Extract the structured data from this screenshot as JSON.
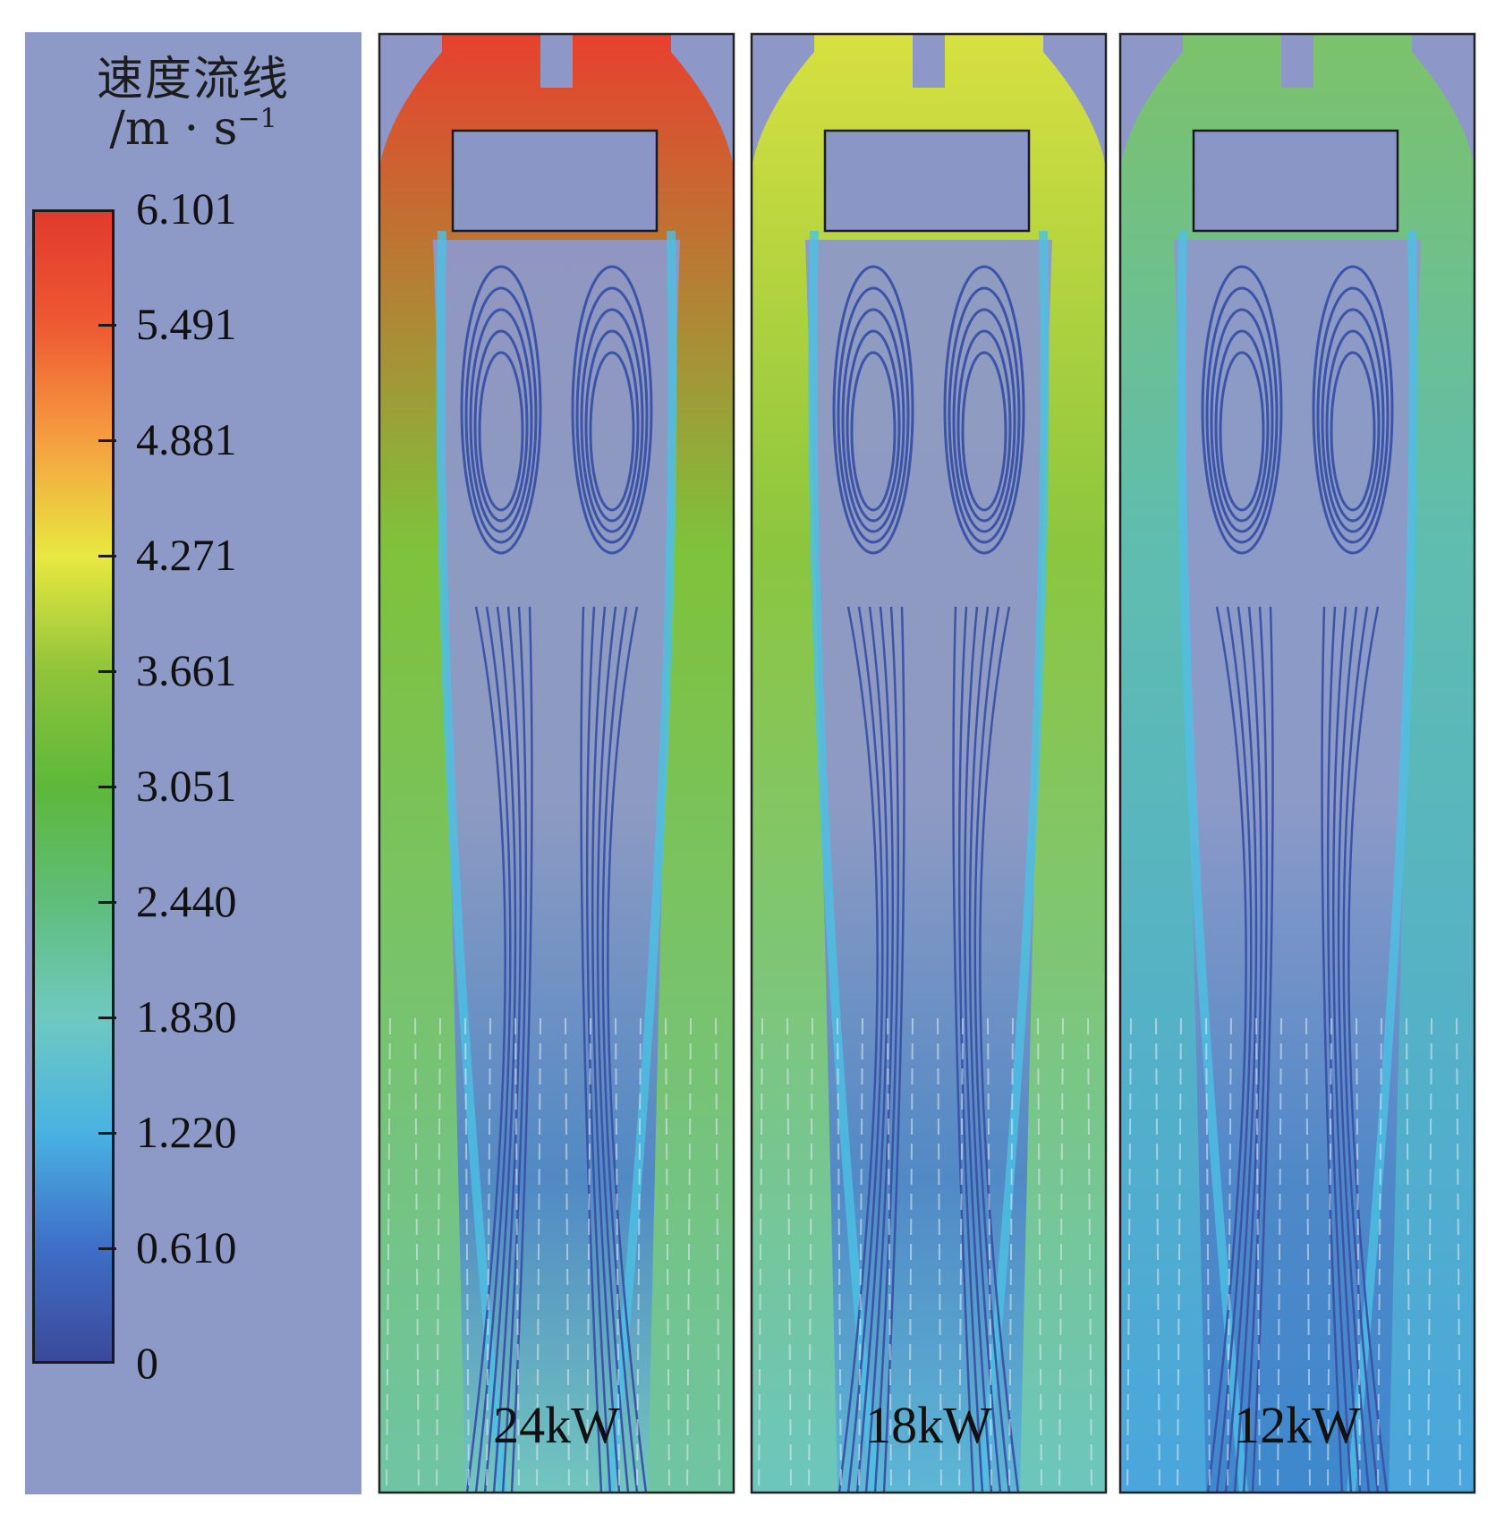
{
  "legend": {
    "title_line1": "速度流线",
    "title_line2": "/m · s",
    "title_sup": "−1",
    "ticks": [
      "6.101",
      "5.491",
      "4.881",
      "4.271",
      "3.661",
      "3.051",
      "2.440",
      "1.830",
      "1.220",
      "0.610",
      "0"
    ],
    "colors": [
      "#3b4a9a",
      "#3f6fc8",
      "#49b3e2",
      "#6fc9c0",
      "#5fbd7a",
      "#5db83a",
      "#8fc43a",
      "#e8e840",
      "#f5a040",
      "#ee5a32",
      "#e23a2e"
    ]
  },
  "panels": [
    {
      "label": "24kW",
      "intensity": 1.0
    },
    {
      "label": "18kW",
      "intensity": 0.7
    },
    {
      "label": "12kW",
      "intensity": 0.42
    }
  ]
}
